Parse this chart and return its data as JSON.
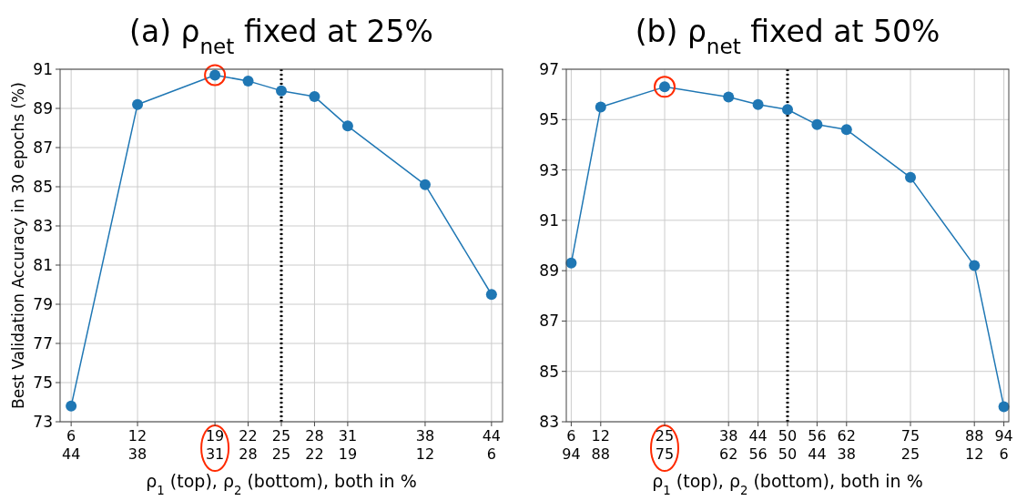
{
  "chart_data": [
    {
      "type": "line",
      "title": "(a) ρ$_{net}$ fixed at 25%",
      "xlabel": "ρ$_{1}$ (top), ρ$_{2}$ (bottom), both in %",
      "ylabel": "Best Validation Accuracy in 30 epochs (%)",
      "x": [
        6,
        12,
        19,
        22,
        25,
        28,
        31,
        38,
        44
      ],
      "series": [
        {
          "color": "#1f77b4",
          "values": [
            73.8,
            89.2,
            90.7,
            90.4,
            89.9,
            89.6,
            88.1,
            85.1,
            79.5
          ]
        }
      ],
      "xlim": [
        5,
        45
      ],
      "ylim": [
        73,
        91
      ],
      "xticks": [
        6,
        12,
        19,
        22,
        25,
        28,
        31,
        38,
        44
      ],
      "x2lim": [
        45,
        5
      ],
      "x2ticks": [
        44,
        38,
        31,
        28,
        25,
        22,
        19,
        12,
        6
      ],
      "yticks": [
        73,
        75,
        77,
        79,
        81,
        83,
        85,
        87,
        89,
        91
      ],
      "ref_lines": [
        {
          "axis": "x",
          "value": 25,
          "color": "#000000",
          "line_style": "dotted"
        }
      ],
      "grid": true,
      "marker": "circle",
      "line_style": "solid"
    },
    {
      "type": "line",
      "title": "(b) ρ$_{net}$ fixed at 50%",
      "xlabel": "ρ$_{1}$ (top), ρ$_{2}$ (bottom), both in %",
      "x": [
        6,
        12,
        25,
        38,
        44,
        50,
        56,
        62,
        75,
        88,
        94
      ],
      "series": [
        {
          "color": "#1f77b4",
          "values": [
            89.3,
            95.5,
            96.3,
            95.9,
            95.6,
            95.4,
            94.8,
            94.6,
            92.7,
            89.2,
            83.6
          ]
        }
      ],
      "xlim": [
        5,
        95
      ],
      "ylim": [
        83,
        97
      ],
      "xticks": [
        6,
        12,
        25,
        38,
        44,
        50,
        56,
        62,
        75,
        88,
        94
      ],
      "x2lim": [
        95,
        5
      ],
      "x2ticks": [
        94,
        88,
        75,
        62,
        56,
        50,
        44,
        38,
        25,
        12,
        6
      ],
      "yticks": [
        83,
        85,
        87,
        89,
        91,
        93,
        95,
        97
      ],
      "ref_lines": [
        {
          "axis": "x",
          "value": 50,
          "color": "#000000",
          "line_style": "dotted"
        }
      ],
      "grid": true,
      "marker": "circle",
      "line_style": "solid"
    }
  ]
}
